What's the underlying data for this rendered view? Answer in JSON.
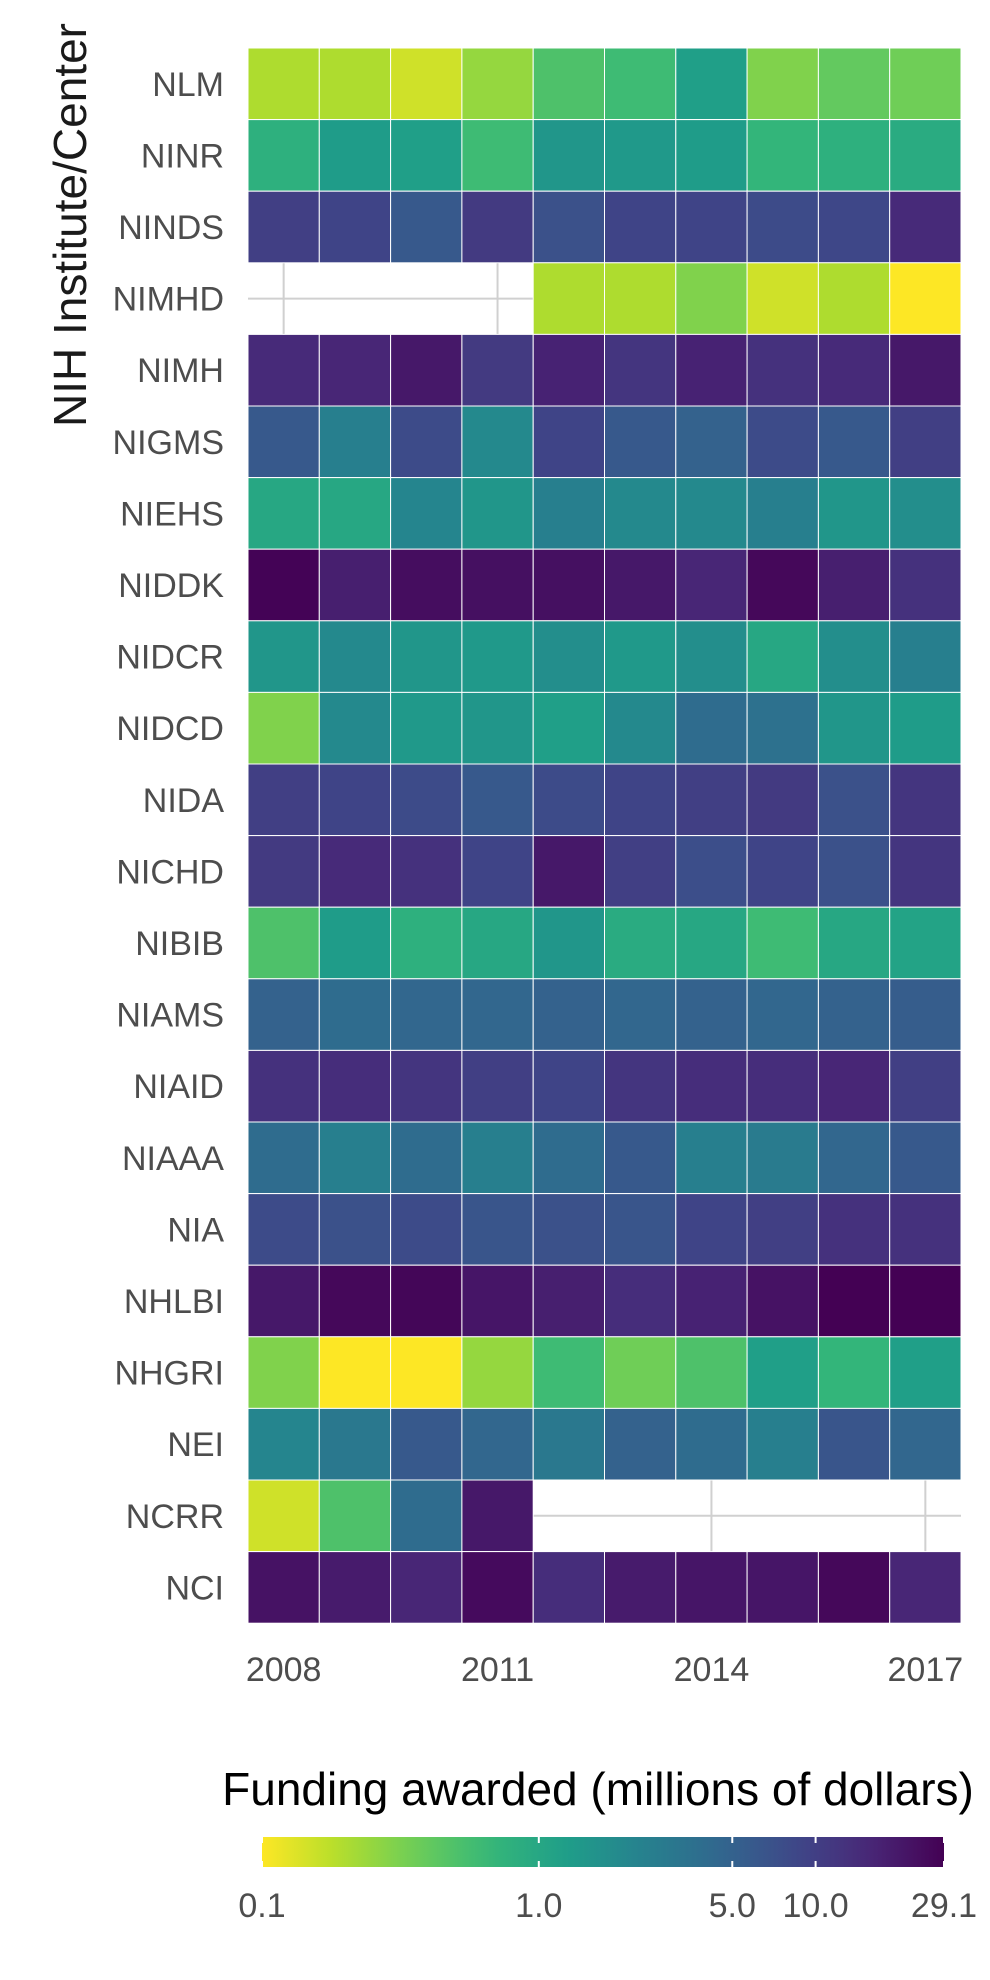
{
  "chart_data": {
    "type": "heatmap",
    "ylabel": "NIH Institute/Center",
    "xlabel": "",
    "x": [
      2008,
      2009,
      2010,
      2011,
      2012,
      2013,
      2014,
      2015,
      2016,
      2017
    ],
    "x_tick_labels": [
      "2008",
      "2011",
      "2014",
      "2017"
    ],
    "y": [
      "NLM",
      "NINR",
      "NINDS",
      "NIMHD",
      "NIMH",
      "NIGMS",
      "NIEHS",
      "NIDDK",
      "NIDCR",
      "NIDCD",
      "NIDA",
      "NICHD",
      "NIBIB",
      "NIAMS",
      "NIAID",
      "NIAAA",
      "NIA",
      "NHLBI",
      "NHGRI",
      "NEI",
      "NCRR",
      "NCI"
    ],
    "values": [
      [
        0.2,
        0.2,
        0.15,
        0.25,
        0.5,
        0.6,
        1.2,
        0.3,
        0.4,
        0.35
      ],
      [
        0.8,
        1.3,
        1.2,
        0.6,
        1.5,
        1.4,
        1.3,
        0.7,
        0.8,
        0.9
      ],
      [
        10,
        9,
        6,
        11,
        7,
        9,
        9,
        8,
        8.5,
        15
      ],
      [
        null,
        null,
        null,
        null,
        0.2,
        0.2,
        0.3,
        0.15,
        0.2,
        0.1
      ],
      [
        15,
        16,
        20,
        11,
        17,
        12,
        17,
        13,
        15,
        20
      ],
      [
        6,
        2.5,
        8,
        2,
        9,
        6,
        5,
        8,
        6,
        10
      ],
      [
        1.0,
        1.0,
        2.2,
        1.5,
        2.5,
        2.0,
        2.0,
        2.5,
        1.5,
        1.8
      ],
      [
        28,
        18,
        24,
        23,
        23,
        20,
        16,
        26,
        18,
        13
      ],
      [
        1.5,
        2.0,
        1.5,
        1.4,
        1.8,
        1.4,
        1.8,
        1.0,
        1.8,
        2.5
      ],
      [
        0.3,
        2.0,
        1.4,
        1.5,
        1.2,
        2.0,
        4.0,
        3.5,
        1.5,
        1.3
      ],
      [
        10,
        9,
        8,
        6,
        8,
        9,
        10,
        11,
        7,
        12
      ],
      [
        11,
        15,
        13,
        9,
        20,
        10,
        7.5,
        9,
        7,
        12
      ],
      [
        0.5,
        1.3,
        0.8,
        1.0,
        1.5,
        0.9,
        1.0,
        0.6,
        1.0,
        1.1
      ],
      [
        5,
        4,
        4.5,
        4.5,
        5,
        4.5,
        5,
        4.5,
        5,
        5.5
      ],
      [
        13,
        14,
        12,
        10,
        9,
        12,
        14,
        14,
        16,
        10
      ],
      [
        4,
        2.5,
        4,
        2.5,
        4,
        6,
        2.5,
        2.8,
        4.5,
        6
      ],
      [
        8,
        7,
        8,
        6.5,
        7,
        6.5,
        9,
        10,
        13,
        13
      ],
      [
        20,
        26,
        27,
        21,
        18,
        14,
        17,
        22,
        29.1,
        29.1
      ],
      [
        0.3,
        0.1,
        0.1,
        0.25,
        0.6,
        0.35,
        0.5,
        1.2,
        0.7,
        1.2
      ],
      [
        2.2,
        3.0,
        6.0,
        4.5,
        3.0,
        5.0,
        4.0,
        2.5,
        6.5,
        4.5
      ],
      [
        0.15,
        0.5,
        4.0,
        20,
        null,
        null,
        null,
        null,
        null,
        null
      ],
      [
        22,
        19,
        16,
        25,
        14,
        19,
        21,
        21,
        26,
        16
      ]
    ],
    "color_scale": "viridis-reversed-log",
    "legend": {
      "title": "Funding awarded (millions of dollars)",
      "tick_labels": [
        "0.1",
        "1.0",
        "5.0",
        "10.0",
        "29.1"
      ],
      "tick_values": [
        0.1,
        1.0,
        5.0,
        10.0,
        29.1
      ],
      "placement": "bottom"
    },
    "missing_color": "#ffffff",
    "grid": true
  }
}
